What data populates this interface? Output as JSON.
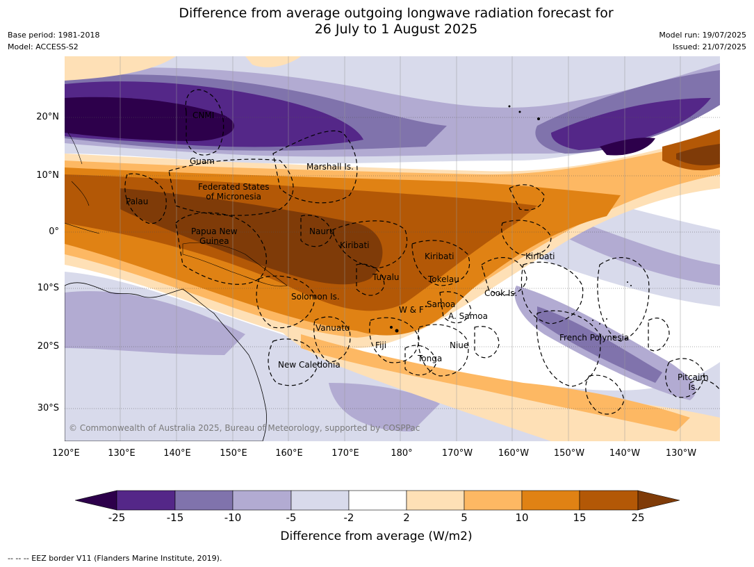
{
  "header": {
    "title_line1": "Difference from average outgoing longwave radiation forecast for",
    "title_line2": "26 July to 1 August 2025",
    "base_period": "Base period: 1981-2018",
    "model": "Model: ACCESS-S2",
    "model_run": "Model run: 19/07/2025",
    "issued": "Issued: 21/07/2025"
  },
  "axes": {
    "lat_labels": [
      "20°N",
      "10°N",
      "0°",
      "10°S",
      "20°S",
      "30°S"
    ],
    "lon_labels": [
      "120°E",
      "130°E",
      "140°E",
      "150°E",
      "160°E",
      "170°E",
      "180°",
      "170°W",
      "160°W",
      "150°W",
      "140°W",
      "130°W"
    ]
  },
  "map_labels": {
    "cnmi": "CNMI",
    "guam": "Guam",
    "marshall": "Marshall Is.",
    "fsm_1": "Federated States",
    "fsm_2": "of Micronesia",
    "palau": "Palau",
    "png_1": "Papua New",
    "png_2": "Guinea",
    "nauru": "Nauru",
    "kiribati_w": "Kiribati",
    "kiribati_c": "Kiribati",
    "kiribati_e": "Kiribati",
    "tuvalu": "Tuvalu",
    "tokelau": "Tokelau",
    "cook": "Cook Is.",
    "solomon": "Solomon Is.",
    "wf": "W & F",
    "samoa": "Samoa",
    "asamoa": "A. Samoa",
    "vanuatu": "Vanuatu",
    "fiji": "Fiji",
    "niue": "Niue",
    "tonga": "Tonga",
    "newcal": "New Caledonia",
    "frpoly": "French Polynesia",
    "pitcairn_1": "Pitcairn",
    "pitcairn_2": "Is."
  },
  "credit": "© Commonwealth of Australia 2025, Bureau of Meteorology, supported by COSPPac",
  "colorbar": {
    "ticks": [
      "-25",
      "-15",
      "-10",
      "-5",
      "-2",
      "2",
      "5",
      "10",
      "15",
      "25"
    ],
    "colors": [
      "#2d004b",
      "#542788",
      "#8073ac",
      "#b2abd2",
      "#d8daeb",
      "#ffffff",
      "#fee0b6",
      "#fdb863",
      "#e08214",
      "#b35806",
      "#7f3b08"
    ],
    "label": "Difference from average (W/m2)"
  },
  "footer": "--  --  -- EEZ border V11 (Flanders Marine Institute, 2019)."
}
